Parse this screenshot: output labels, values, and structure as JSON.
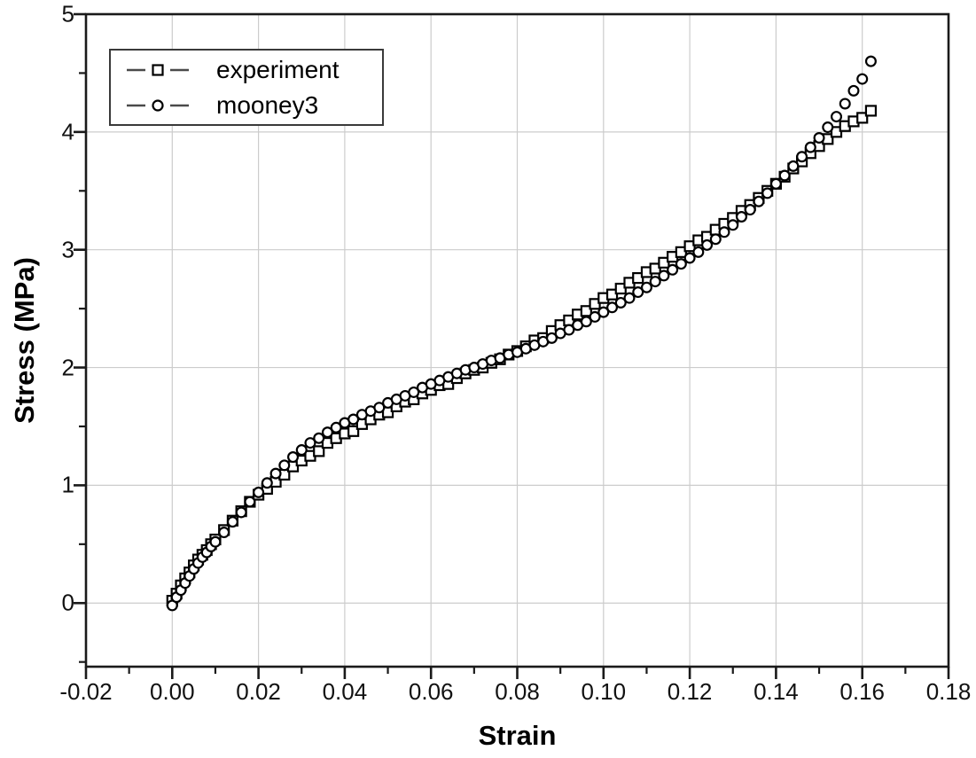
{
  "chart_data": {
    "type": "scatter",
    "title": "",
    "xlabel": "Strain",
    "ylabel": "Stress (MPa)",
    "xlim": [
      -0.02,
      0.18
    ],
    "ylim": [
      -0.54,
      5
    ],
    "grid": true,
    "legend_position": "top-left",
    "strain": [
      0.0,
      0.001,
      0.002,
      0.003,
      0.004,
      0.005,
      0.006,
      0.007,
      0.008,
      0.009,
      0.01,
      0.012,
      0.014,
      0.016,
      0.018,
      0.02,
      0.022,
      0.024,
      0.026,
      0.028,
      0.03,
      0.032,
      0.034,
      0.036,
      0.038,
      0.04,
      0.042,
      0.044,
      0.046,
      0.048,
      0.05,
      0.052,
      0.054,
      0.056,
      0.058,
      0.06,
      0.062,
      0.064,
      0.066,
      0.068,
      0.07,
      0.072,
      0.074,
      0.076,
      0.078,
      0.08,
      0.082,
      0.084,
      0.086,
      0.088,
      0.09,
      0.092,
      0.094,
      0.096,
      0.098,
      0.1,
      0.102,
      0.104,
      0.106,
      0.108,
      0.11,
      0.112,
      0.114,
      0.116,
      0.118,
      0.12,
      0.122,
      0.124,
      0.126,
      0.128,
      0.13,
      0.132,
      0.134,
      0.136,
      0.138,
      0.14,
      0.142,
      0.144,
      0.146,
      0.148,
      0.15,
      0.152,
      0.154,
      0.156,
      0.158,
      0.16,
      0.162
    ],
    "series": [
      {
        "name": "experiment",
        "marker": "square",
        "stress": [
          0.02,
          0.08,
          0.15,
          0.21,
          0.26,
          0.32,
          0.37,
          0.41,
          0.45,
          0.5,
          0.54,
          0.62,
          0.7,
          0.78,
          0.86,
          0.92,
          0.97,
          1.03,
          1.09,
          1.16,
          1.21,
          1.25,
          1.29,
          1.36,
          1.4,
          1.44,
          1.46,
          1.52,
          1.56,
          1.6,
          1.62,
          1.67,
          1.71,
          1.73,
          1.78,
          1.81,
          1.85,
          1.86,
          1.91,
          1.95,
          1.98,
          2.0,
          2.04,
          2.07,
          2.11,
          2.14,
          2.18,
          2.23,
          2.25,
          2.31,
          2.36,
          2.4,
          2.45,
          2.48,
          2.54,
          2.59,
          2.62,
          2.67,
          2.72,
          2.76,
          2.81,
          2.84,
          2.89,
          2.94,
          2.98,
          3.03,
          3.08,
          3.11,
          3.17,
          3.22,
          3.27,
          3.33,
          3.38,
          3.44,
          3.5,
          3.56,
          3.62,
          3.69,
          3.75,
          3.82,
          3.88,
          3.94,
          4.0,
          4.05,
          4.09,
          4.12,
          4.18
        ]
      },
      {
        "name": "mooney3",
        "marker": "circle",
        "stress": [
          -0.02,
          0.05,
          0.11,
          0.17,
          0.23,
          0.29,
          0.34,
          0.39,
          0.43,
          0.48,
          0.52,
          0.6,
          0.69,
          0.77,
          0.86,
          0.94,
          1.02,
          1.1,
          1.17,
          1.24,
          1.3,
          1.36,
          1.4,
          1.45,
          1.49,
          1.53,
          1.56,
          1.6,
          1.63,
          1.66,
          1.7,
          1.73,
          1.76,
          1.79,
          1.83,
          1.86,
          1.89,
          1.92,
          1.95,
          1.98,
          2.0,
          2.03,
          2.06,
          2.08,
          2.11,
          2.13,
          2.16,
          2.19,
          2.22,
          2.25,
          2.29,
          2.32,
          2.36,
          2.39,
          2.43,
          2.47,
          2.51,
          2.55,
          2.59,
          2.64,
          2.68,
          2.73,
          2.78,
          2.83,
          2.88,
          2.93,
          2.98,
          3.04,
          3.09,
          3.15,
          3.21,
          3.28,
          3.34,
          3.41,
          3.48,
          3.56,
          3.63,
          3.71,
          3.79,
          3.87,
          3.95,
          4.04,
          4.13,
          4.24,
          4.35,
          4.45,
          4.6
        ]
      }
    ],
    "axes": {
      "x": {
        "tick_values": [
          -0.02,
          0.0,
          0.02,
          0.04,
          0.06,
          0.08,
          0.1,
          0.12,
          0.14,
          0.16,
          0.18
        ],
        "tick_labels": [
          "-0.02",
          "0.00",
          "0.02",
          "0.04",
          "0.06",
          "0.08",
          "0.10",
          "0.12",
          "0.14",
          "0.16",
          "0.18"
        ],
        "minor_tick_values": [
          -0.01,
          0.01,
          0.03,
          0.05,
          0.07,
          0.09,
          0.11,
          0.13,
          0.15,
          0.17
        ]
      },
      "y": {
        "tick_values": [
          0,
          1,
          2,
          3,
          4,
          5
        ],
        "tick_labels": [
          "0",
          "1",
          "2",
          "3",
          "4",
          "5"
        ],
        "minor_tick_values": [
          -0.5,
          0.5,
          1.5,
          2.5,
          3.5,
          4.5
        ]
      }
    }
  },
  "legend": {
    "entries": [
      {
        "label": "experiment",
        "marker": "square"
      },
      {
        "label": "mooney3",
        "marker": "circle"
      }
    ]
  },
  "styles": {
    "marker_stroke": "#000000",
    "marker_fill": "#ffffff",
    "grid_color": "#cccccc",
    "axis_color": "#1a1a1a",
    "legend_dash_color": "#4a4a4a",
    "background": "#ffffff"
  }
}
